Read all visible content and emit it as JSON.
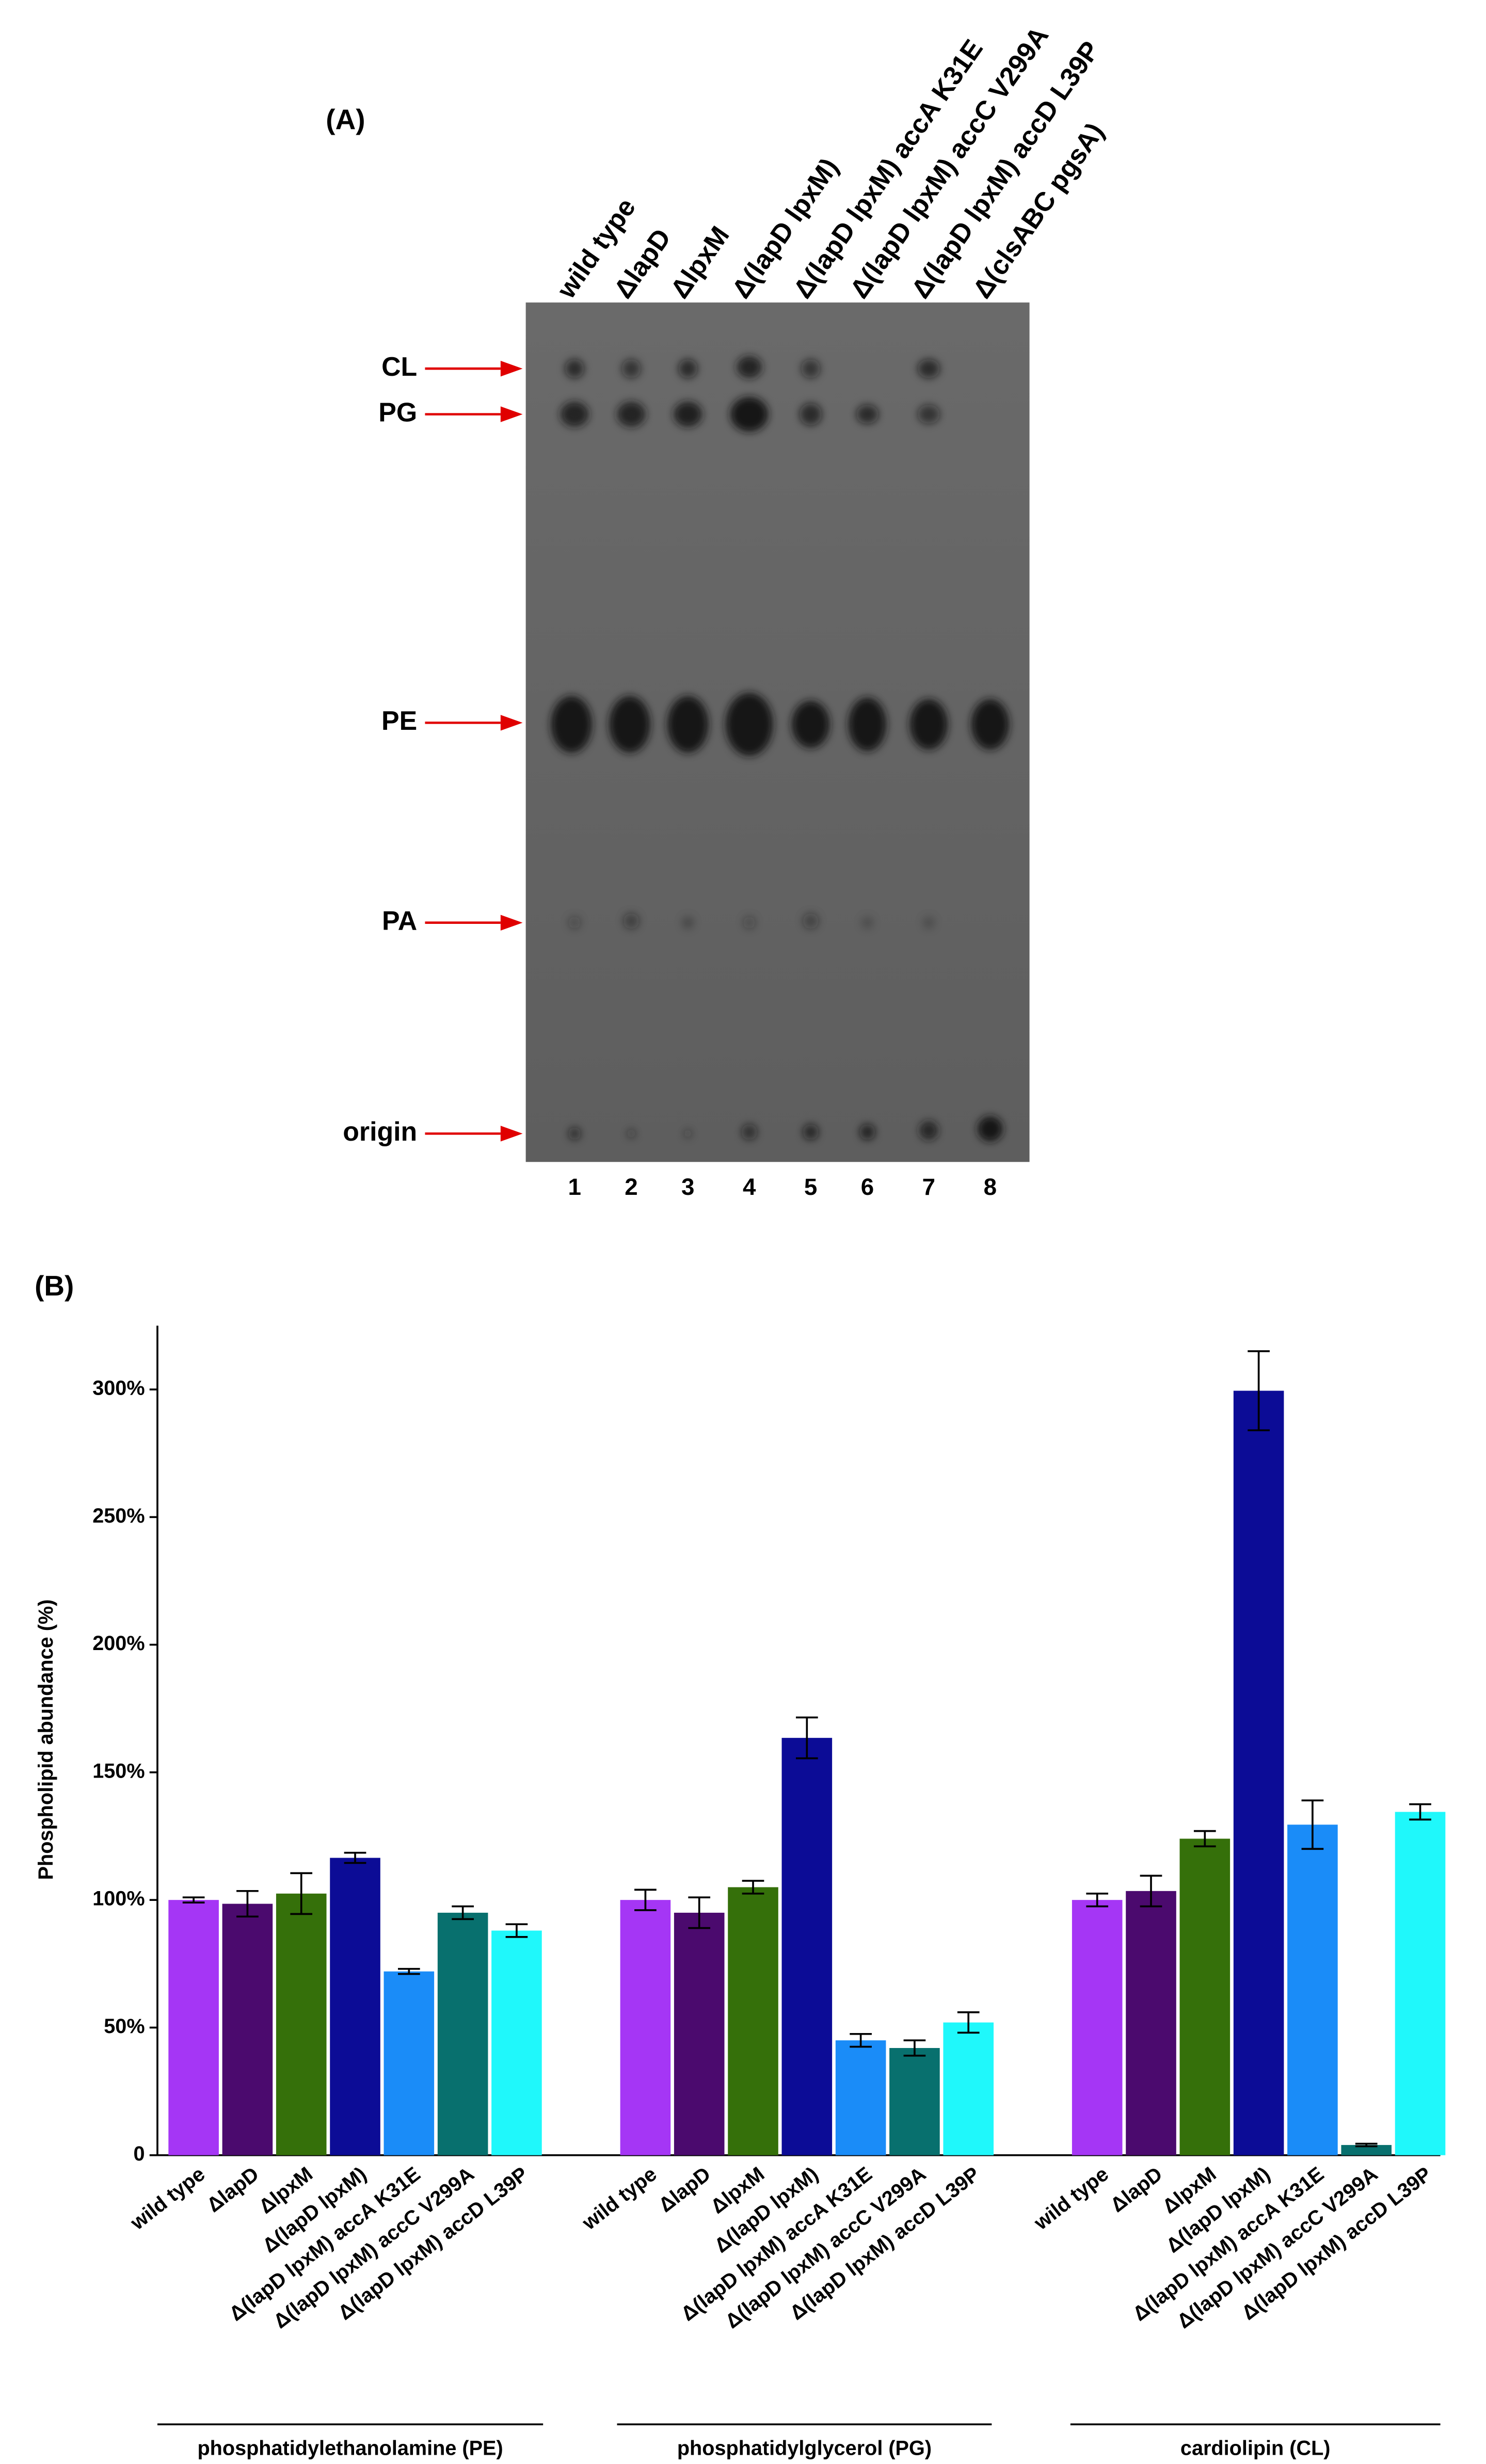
{
  "panel_a": {
    "label": "(A)",
    "lanes": [
      "wild type",
      "ΔlapD",
      "ΔlpxM",
      "Δ(lapD lpxM)",
      "Δ(lapD lpxM) accA K31E",
      "Δ(lapD lpxM) accC V299A",
      "Δ(lapD lpxM) accD L39P",
      "Δ(clsABC pgsA)"
    ],
    "lane_numbers": [
      1,
      2,
      3,
      4,
      5,
      6,
      7,
      8
    ],
    "bands": [
      "CL",
      "PG",
      "PE",
      "PA",
      "origin"
    ]
  },
  "chart_data": {
    "type": "bar",
    "panel_label": "(B)",
    "y_label": "Phospholipid abundance (%)",
    "categories": [
      "phosphatidylethanolamine (PE)",
      "phosphatidylglycerol (PG)",
      "cardiolipin (CL)"
    ],
    "series": [
      {
        "name": "wild type",
        "color": "#a536f5",
        "values": [
          100,
          100,
          100
        ],
        "errors": [
          1,
          4,
          2.5
        ]
      },
      {
        "name": "ΔlapD",
        "color": "#4b0a6e",
        "values": [
          98.5,
          95,
          103.5
        ],
        "errors": [
          5,
          6,
          6
        ]
      },
      {
        "name": "ΔlpxM",
        "color": "#35700a",
        "values": [
          102.5,
          105,
          124
        ],
        "errors": [
          8,
          2.5,
          3
        ]
      },
      {
        "name": "Δ(lapD lpxM)",
        "color": "#0c0c96",
        "values": [
          116.5,
          163.5,
          299.5
        ],
        "errors": [
          2,
          8,
          15.5
        ]
      },
      {
        "name": "Δ(lapD lpxM) accA K31E",
        "color": "#1a8cf8",
        "values": [
          72,
          45,
          129.5
        ],
        "errors": [
          1,
          2.5,
          9.5
        ]
      },
      {
        "name": "Δ(lapD lpxM) accC V299A",
        "color": "#08706e",
        "values": [
          95,
          42,
          4
        ],
        "errors": [
          2.5,
          3,
          0.5
        ]
      },
      {
        "name": "Δ(lapD lpxM) accD L39P",
        "color": "#1ff8fb",
        "values": [
          88,
          52,
          134.5
        ],
        "errors": [
          2.5,
          4,
          3
        ]
      }
    ],
    "ylim": [
      0,
      325
    ],
    "yticks": [
      0,
      {
        "value": 50,
        "label": "50%"
      },
      {
        "value": 100,
        "label": "100%"
      },
      {
        "value": 150,
        "label": "150%"
      },
      {
        "value": 200,
        "label": "200%"
      },
      {
        "value": 250,
        "label": "250%"
      },
      {
        "value": 300,
        "label": "300%"
      }
    ]
  }
}
